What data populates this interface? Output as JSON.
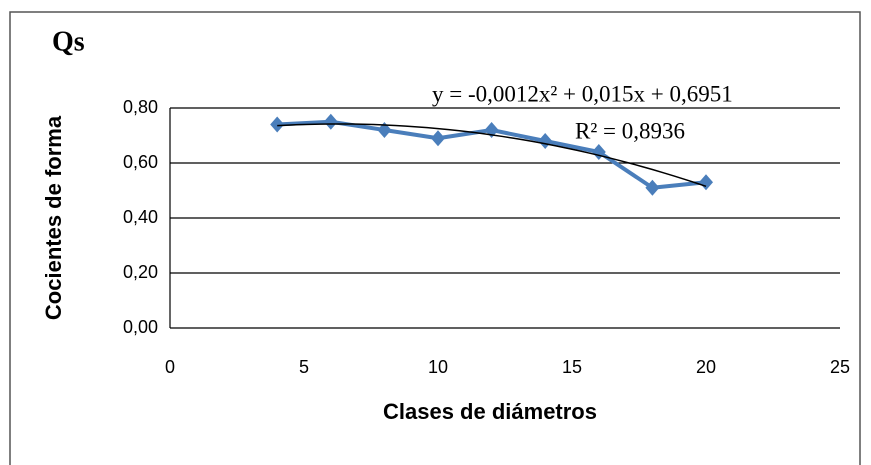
{
  "chart_data": {
    "type": "line",
    "title": "Qs",
    "xlabel": "Clases de diámetros",
    "ylabel": "Cocientes de forma",
    "x": [
      4,
      6,
      8,
      10,
      12,
      14,
      16,
      18,
      20
    ],
    "series": [
      {
        "color": "#4a7ebb",
        "values": [
          0.74,
          0.75,
          0.72,
          0.69,
          0.72,
          0.68,
          0.64,
          0.51,
          0.53
        ]
      }
    ],
    "trendline": {
      "color": "#000000",
      "coefficients": [
        -0.0012,
        0.015,
        0.6951
      ],
      "equation": "y = -0,0012x² + 0,015x + 0,6951",
      "r_squared": "R² = 0,8936"
    },
    "xlim": [
      0,
      25
    ],
    "xticks": [
      0,
      5,
      10,
      15,
      20,
      25
    ],
    "ylim": [
      0,
      0.8
    ],
    "yticks": [
      {
        "value": 0,
        "label": "0,00"
      },
      {
        "value": 0.2,
        "label": "0,20"
      },
      {
        "value": 0.4,
        "label": "0,40"
      },
      {
        "value": 0.6,
        "label": "0,60"
      },
      {
        "value": 0.8,
        "label": "0,80"
      }
    ],
    "grid": true
  }
}
